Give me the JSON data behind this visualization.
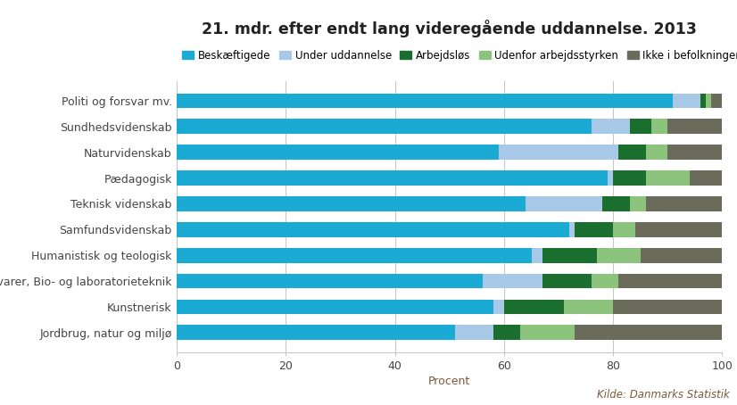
{
  "title": "21. mdr. efter endt lang videregående uddannelse. 2013",
  "categories": [
    "Politi og forsvar mv.",
    "Sundhedsvidenskab",
    "Naturvidenskab",
    "Pædagogisk",
    "Teknisk videnskab",
    "Samfundsvidenskab",
    "Humanistisk og teologisk",
    "Fødevarer, Bio- og laboratorieteknik",
    "Kunstnerisk",
    "Jordbrug, natur og miljø"
  ],
  "series": {
    "Beskæftigede": [
      91,
      76,
      59,
      79,
      64,
      72,
      65,
      56,
      58,
      51
    ],
    "Under uddannelse": [
      5,
      7,
      22,
      1,
      14,
      1,
      2,
      11,
      2,
      7
    ],
    "Arbejdsløs": [
      1,
      4,
      5,
      6,
      5,
      7,
      10,
      9,
      11,
      5
    ],
    "Udenfor arbejdsstyrken": [
      1,
      3,
      4,
      8,
      3,
      4,
      8,
      5,
      9,
      10
    ],
    "Ikke i befolkningen": [
      2,
      10,
      10,
      6,
      14,
      16,
      15,
      19,
      20,
      27
    ]
  },
  "colors": {
    "Beskæftigede": "#1baad4",
    "Under uddannelse": "#a8c8e8",
    "Arbejdsløs": "#1a6e2e",
    "Udenfor arbejdsstyrken": "#8cc47e",
    "Ikke i befolkningen": "#6b6b5b"
  },
  "legend_labels": [
    "Beskæftigede",
    "Under uddannelse",
    "Arbejdsløs",
    "Udenfor arbejdsstyrken",
    "Ikke i befolkningen"
  ],
  "xlabel": "Procent",
  "source": "Kilde: Danmarks Statistik",
  "xlim": [
    0,
    100
  ],
  "xticks": [
    0,
    20,
    40,
    60,
    80,
    100
  ],
  "background_color": "#ffffff",
  "grid_color": "#c8c8c8",
  "title_color": "#222222",
  "label_color": "#7a5a3a",
  "bar_height": 0.58
}
